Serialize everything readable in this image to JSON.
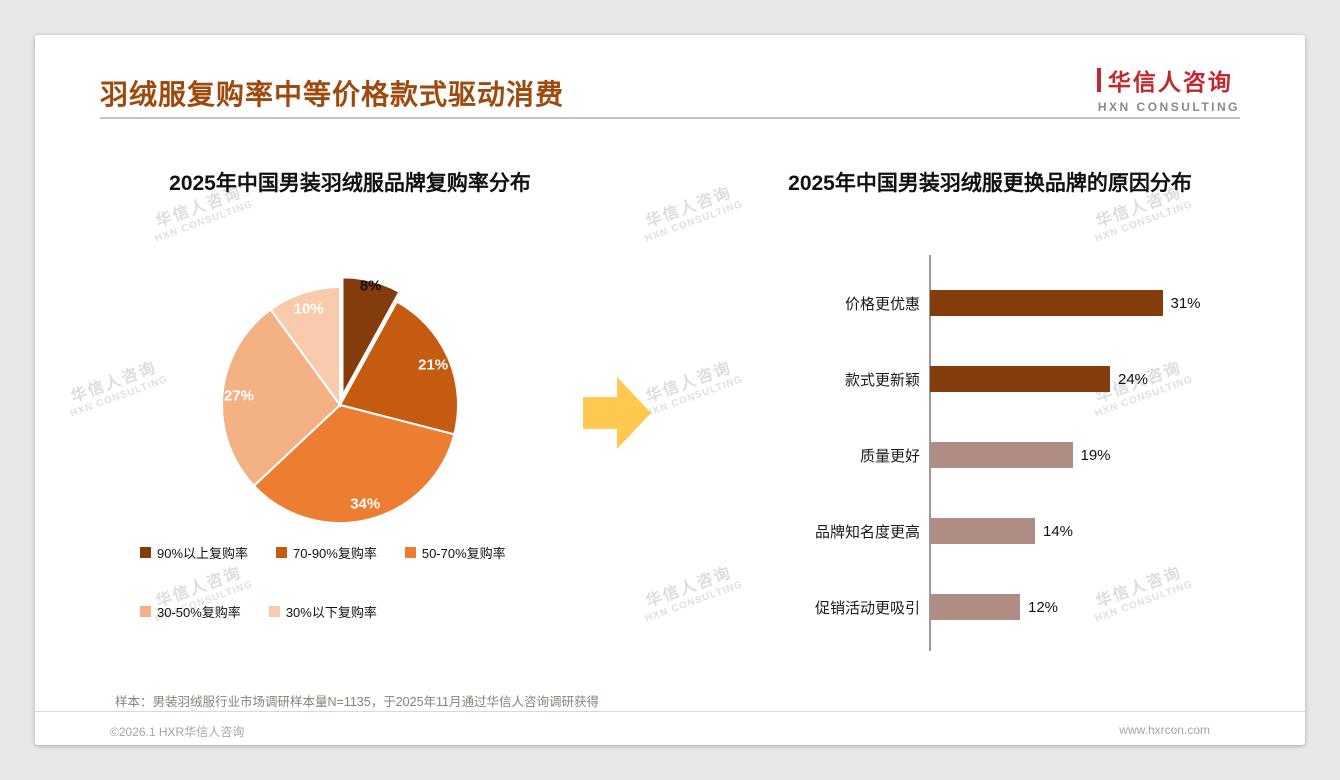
{
  "slide": {
    "title": "羽绒服复购率中等价格款式驱动消费",
    "note": "样本：男装羽绒服行业市场调研样本量N=1135，于2025年11月通过华信人咨询调研获得",
    "footer": {
      "left": "©2026.1 HXR华信人咨询",
      "right": "www.hxrcon.com"
    }
  },
  "logo": {
    "name": "华信人咨询",
    "tagline": "HXN CONSULTING"
  },
  "watermark": {
    "line1": "华信人咨询",
    "line2": "HXN CONSULTING"
  },
  "colors": {
    "title": "#9E4A0E",
    "logo_red": "#C0282D",
    "arrow": "#FFC84E",
    "dark_brown": "#843C0C",
    "rosy_brown": "#B08D84"
  },
  "chart_data": [
    {
      "type": "pie",
      "title": "2025年中国男装羽绒服品牌复购率分布",
      "labels": [
        "90%以上复购率",
        "70-90%复购率",
        "50-70%复购率",
        "30-50%复购率",
        "30%以下复购率"
      ],
      "values": [
        8,
        21,
        34,
        27,
        10
      ],
      "value_labels": [
        "8%",
        "21%",
        "34%",
        "27%",
        "10%"
      ],
      "colors": [
        "#843C0C",
        "#C55A11",
        "#ED7D31",
        "#F4B183",
        "#F8CBAD"
      ],
      "start_angle_deg": 0,
      "direction": "clockwise",
      "exploded_index": 0,
      "legend_position": "bottom"
    },
    {
      "type": "bar",
      "orientation": "horizontal",
      "title": "2025年中国男装羽绒服更换品牌的原因分布",
      "categories": [
        "价格更优惠",
        "款式更新颖",
        "质量更好",
        "品牌知名度更高",
        "促销活动更吸引"
      ],
      "values": [
        31,
        24,
        19,
        14,
        12
      ],
      "value_labels": [
        "31%",
        "24%",
        "19%",
        "14%",
        "12%"
      ],
      "colors": [
        "#843C0C",
        "#843C0C",
        "#B08D84",
        "#B08D84",
        "#B08D84"
      ],
      "xlim": [
        0,
        35
      ],
      "grid": false,
      "legend": false
    }
  ]
}
